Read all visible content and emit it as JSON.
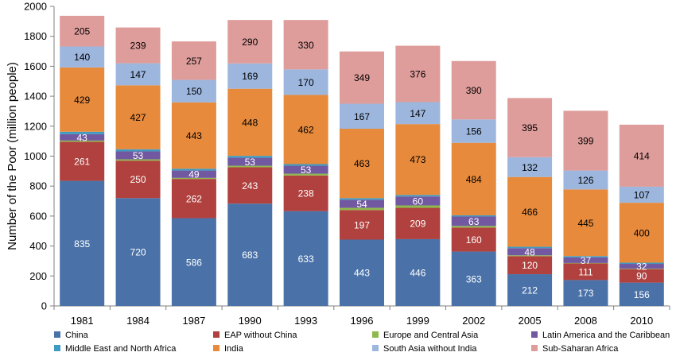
{
  "chart_data": {
    "type": "bar",
    "stacked": true,
    "title": "",
    "xlabel": "",
    "ylabel": "Number of the Poor (million people)",
    "ylim": [
      0,
      2000
    ],
    "yticks": [
      0,
      200,
      400,
      600,
      800,
      1000,
      1200,
      1400,
      1600,
      1800,
      2000
    ],
    "grid": false,
    "legend_position": "bottom",
    "categories": [
      "1981",
      "1984",
      "1987",
      "1990",
      "1993",
      "1996",
      "1999",
      "2002",
      "2005",
      "2008",
      "2010"
    ],
    "series": [
      {
        "name": "China",
        "color": "#4a72a8",
        "label_color": "#ffffff",
        "show_labels": true,
        "values": [
          835,
          720,
          586,
          683,
          633,
          443,
          446,
          363,
          212,
          173,
          156
        ]
      },
      {
        "name": "EAP without China",
        "color": "#b0413e",
        "label_color": "#ffffff",
        "show_labels": true,
        "values": [
          261,
          250,
          262,
          243,
          238,
          197,
          209,
          160,
          120,
          111,
          90
        ]
      },
      {
        "name": "Europe and Central Asia",
        "color": "#8eb94c",
        "label_color": "#000000",
        "show_labels": false,
        "values": [
          8,
          9,
          7,
          10,
          12,
          15,
          16,
          11,
          6,
          3,
          3
        ]
      },
      {
        "name": "Latin America and the Caribbean",
        "color": "#7158a0",
        "label_color": "#ffffff",
        "show_labels": true,
        "values": [
          43,
          53,
          49,
          53,
          53,
          54,
          60,
          63,
          48,
          37,
          32
        ]
      },
      {
        "name": "Middle East and North Africa",
        "color": "#3f9bc0",
        "label_color": "#000000",
        "show_labels": false,
        "values": [
          16,
          14,
          12,
          13,
          11,
          11,
          10,
          8,
          9,
          9,
          8
        ]
      },
      {
        "name": "India",
        "color": "#e78a3c",
        "label_color": "#000000",
        "show_labels": true,
        "values": [
          429,
          427,
          443,
          448,
          462,
          463,
          473,
          484,
          466,
          445,
          400
        ]
      },
      {
        "name": "South Asia without India",
        "color": "#9cb6de",
        "label_color": "#000000",
        "show_labels": true,
        "values": [
          140,
          147,
          150,
          169,
          170,
          167,
          147,
          156,
          132,
          126,
          107
        ]
      },
      {
        "name": "Sub-Saharan Africa",
        "color": "#de9d9b",
        "label_color": "#000000",
        "show_labels": true,
        "values": [
          205,
          239,
          257,
          290,
          330,
          349,
          376,
          390,
          395,
          399,
          414
        ]
      }
    ]
  }
}
